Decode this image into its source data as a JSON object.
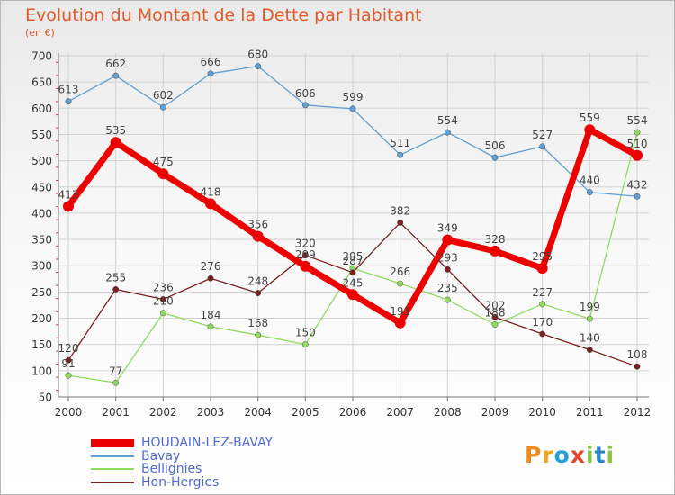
{
  "title": "Evolution du Montant de la Dette par Habitant",
  "unit": "(en €)",
  "brand": {
    "text": "Proxiti",
    "letter_colors": [
      "#f08a1c",
      "#f0a41c",
      "#27a0d8",
      "#e8462a",
      "#8ac43f",
      "#2a86c8",
      "#8ac43f"
    ]
  },
  "chart_data": {
    "type": "line",
    "title": "Evolution du Montant de la Dette par Habitant",
    "ylabel": "(en €)",
    "xlabel": "",
    "x": [
      "2000",
      "2001",
      "2002",
      "2003",
      "2004",
      "2005",
      "2006",
      "2007",
      "2008",
      "2009",
      "2010",
      "2011",
      "2012"
    ],
    "ylim": [
      50,
      700
    ],
    "yticks": [
      "50",
      "100",
      "150",
      "200",
      "250",
      "300",
      "350",
      "400",
      "450",
      "500",
      "550",
      "600",
      "650",
      "700"
    ],
    "grid": true,
    "legend_position": "bottom-left",
    "series": [
      {
        "name": "HOUDAIN-LEZ-BAVAY",
        "color": "#ee0000",
        "emphasis": true,
        "values": [
          413,
          535,
          475,
          418,
          356,
          299,
          245,
          191,
          349,
          328,
          295,
          559,
          510
        ],
        "labels": [
          "413",
          "535",
          "475",
          "418",
          "356",
          "299",
          "245",
          "191",
          "349",
          "328",
          "295",
          "559",
          "510"
        ]
      },
      {
        "name": "Bavay",
        "color": "#5f9fd6",
        "emphasis": false,
        "values": [
          613,
          662,
          602,
          666,
          680,
          606,
          599,
          511,
          554,
          506,
          527,
          440,
          432
        ],
        "labels": [
          "613",
          "662",
          "602",
          "666",
          "680",
          "606",
          "599",
          "511",
          "554",
          "506",
          "527",
          "440",
          "432"
        ]
      },
      {
        "name": "Bellignies",
        "color": "#8fdc5c",
        "emphasis": false,
        "values": [
          91,
          77,
          210,
          184,
          168,
          150,
          295,
          266,
          235,
          188,
          227,
          199,
          554
        ],
        "labels": [
          "91",
          "77",
          "210",
          "184",
          "168",
          "150",
          "295",
          "266",
          "235",
          "188",
          "227",
          "199",
          "554"
        ]
      },
      {
        "name": "Hon-Hergies",
        "color": "#7a2020",
        "emphasis": false,
        "values": [
          120,
          255,
          236,
          276,
          248,
          320,
          287,
          382,
          293,
          202,
          170,
          140,
          108
        ],
        "labels": [
          "120",
          "255",
          "236",
          "276",
          "248",
          "320",
          "287",
          "382",
          "293",
          "202",
          "170",
          "140",
          "108"
        ]
      }
    ]
  }
}
